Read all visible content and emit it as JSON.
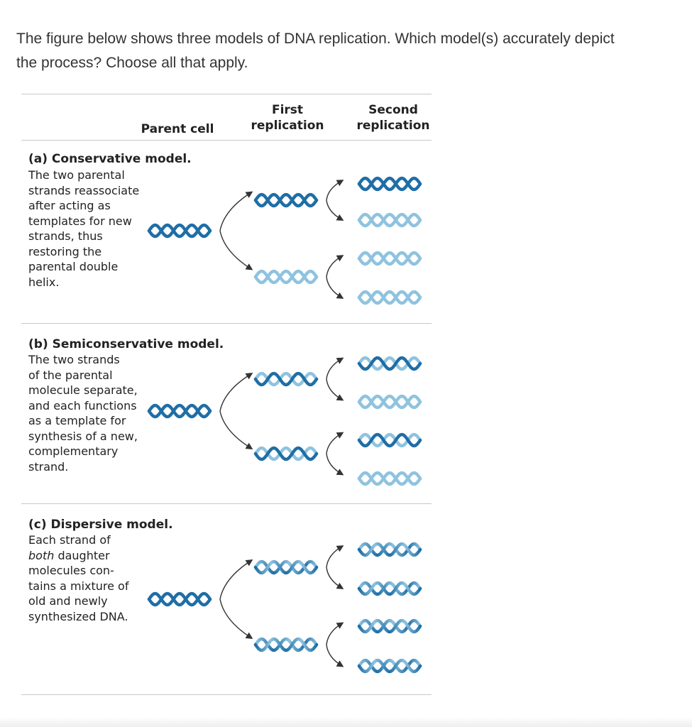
{
  "question": {
    "text_line1": "The figure below shows three models of DNA replication. Which model(s) accurately depict",
    "text_line2": "the process? Choose all that apply."
  },
  "figure": {
    "headers": {
      "parent": "Parent cell",
      "first_line1": "First",
      "first_line2": "replication",
      "second_line1": "Second",
      "second_line2": "replication"
    },
    "models": [
      {
        "title": "(a) Conservative model.",
        "description": "The two parental\nstrands reassociate\nafter acting as\ntemplates for new\nstrands, thus\nrestoring the\nparental double\nhelix."
      },
      {
        "title": "(b) Semiconservative model.",
        "description": "The two strands\nof the parental\nmolecule separate,\nand each functions\nas a template for\nsynthesis of a new,\ncomplementary\nstrand."
      },
      {
        "title": "(c) Dispersive model.",
        "description_line1": "Each strand of",
        "description_line2_em": "both",
        "description_line2_rest": " daughter",
        "description_rest": "molecules con-\ntains a mixture of\nold and newly\nsynthesized DNA."
      }
    ],
    "colors": {
      "parental_strand": "#1f6ea6",
      "new_strand": "#8fc3df",
      "arrow": "#333333",
      "divider": "#c8c8c8"
    }
  }
}
